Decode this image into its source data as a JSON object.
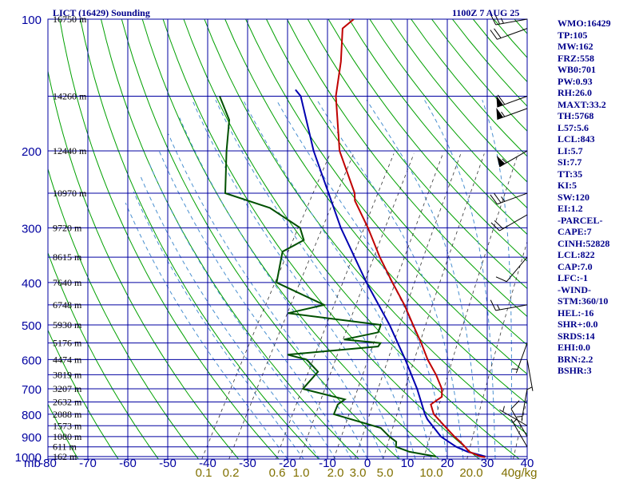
{
  "header": {
    "station": "LICT (16429) Sounding",
    "time": "1100Z  7 AUG 25"
  },
  "stats": [
    "WMO:16429",
    "TP:105",
    "MW:162",
    "FRZ:558",
    "WB0:701",
    "PW:0.93",
    "RH:26.0",
    "MAXT:33.2",
    "TH:5768",
    "L57:5.6",
    "LCL:843",
    "LI:5.7",
    "SI:7.7",
    "TT:35",
    "KI:5",
    "SW:120",
    "EI:1.2",
    "-PARCEL-",
    "CAPE:7",
    "CINH:52828",
    "LCL:822",
    "CAP:7.0",
    "LFC:-1",
    "-WIND-",
    "STM:360/10",
    "HEL:-16",
    "SHR+:0.0",
    "SRDS:14",
    "EHI:0.0",
    "BRN:2.2",
    "BSHR:3"
  ],
  "colors": {
    "frame": "#0000a0",
    "isotherm": "#0000a0",
    "isobar": "#0000a0",
    "dry_adiabat": "#00a000",
    "moist_adiabat": "#4a90d0",
    "mixing_ratio": "#333333",
    "temperature": "#c00000",
    "dewpoint": "#005000",
    "parcel": "#0000b0",
    "wind_barb": "#000000",
    "mixing_label": "#807000"
  },
  "chart_data": {
    "type": "skew-t",
    "ylabel": "mb",
    "pressure_levels": [
      100,
      200,
      300,
      400,
      500,
      600,
      700,
      800,
      900,
      1000
    ],
    "pressure_tick_labels": [
      "100",
      "200",
      "300",
      "400",
      "500",
      "600",
      "700",
      "800",
      "900",
      "1000"
    ],
    "height_labels": [
      {
        "p": 100,
        "text": "16750 m"
      },
      {
        "p": 150,
        "text": "14260 m"
      },
      {
        "p": 200,
        "text": "12440 m"
      },
      {
        "p": 250,
        "text": "10970 m"
      },
      {
        "p": 300,
        "text": "9720 m"
      },
      {
        "p": 350,
        "text": "8615 m"
      },
      {
        "p": 400,
        "text": "7640 m"
      },
      {
        "p": 450,
        "text": "6748 m"
      },
      {
        "p": 500,
        "text": "5930 m"
      },
      {
        "p": 550,
        "text": "5176 m"
      },
      {
        "p": 600,
        "text": "4474 m"
      },
      {
        "p": 650,
        "text": "3819 m"
      },
      {
        "p": 700,
        "text": "3207 m"
      },
      {
        "p": 750,
        "text": "2632 m"
      },
      {
        "p": 800,
        "text": "2088 m"
      },
      {
        "p": 850,
        "text": "1573 m"
      },
      {
        "p": 900,
        "text": "1080 m"
      },
      {
        "p": 950,
        "text": "611 m"
      },
      {
        "p": 1000,
        "text": "162 m"
      }
    ],
    "temperature_ticks": [
      -80,
      -70,
      -60,
      -50,
      -40,
      -30,
      -20,
      -10,
      0,
      10,
      20,
      30,
      40
    ],
    "temperature_tick_labels": [
      "-80",
      "-70",
      "-60",
      "-50",
      "-40",
      "-30",
      "-20",
      "-10",
      "0",
      "10",
      "20",
      "30",
      "40"
    ],
    "mixing_ratios": [
      0.1,
      0.2,
      0.6,
      1.0,
      2.0,
      3.0,
      5.0,
      10.0,
      20.0,
      40.0
    ],
    "mixing_ratio_labels": [
      "0.1",
      "0.2",
      "0.6",
      "1.0",
      "2.0",
      "3.0",
      "5.0",
      "10.0",
      "20.0",
      "40g/kg"
    ],
    "temperature_profile": [
      {
        "p": 1003,
        "t": 29.2
      },
      {
        "p": 1000,
        "t": 28.0
      },
      {
        "p": 975,
        "t": 24.4
      },
      {
        "p": 950,
        "t": 22.6
      },
      {
        "p": 925,
        "t": 20.6
      },
      {
        "p": 900,
        "t": 18.4
      },
      {
        "p": 850,
        "t": 14.2
      },
      {
        "p": 800,
        "t": 9.8
      },
      {
        "p": 760,
        "t": 7.6
      },
      {
        "p": 730,
        "t": 9.2
      },
      {
        "p": 700,
        "t": 8.0
      },
      {
        "p": 650,
        "t": 4.4
      },
      {
        "p": 600,
        "t": 0.0
      },
      {
        "p": 550,
        "t": -4.1
      },
      {
        "p": 500,
        "t": -8.9
      },
      {
        "p": 450,
        "t": -14.1
      },
      {
        "p": 400,
        "t": -20.5
      },
      {
        "p": 350,
        "t": -27.5
      },
      {
        "p": 300,
        "t": -34.9
      },
      {
        "p": 260,
        "t": -42.3
      },
      {
        "p": 250,
        "t": -43.5
      },
      {
        "p": 200,
        "t": -53.7
      },
      {
        "p": 150,
        "t": -62.9
      },
      {
        "p": 125,
        "t": -66.9
      },
      {
        "p": 105,
        "t": -71.5
      },
      {
        "p": 100,
        "t": -70.1
      }
    ],
    "dewpoint_profile": [
      {
        "p": 1000,
        "t": 16.8
      },
      {
        "p": 975,
        "t": 9.4
      },
      {
        "p": 950,
        "t": 5.3
      },
      {
        "p": 925,
        "t": 4.6
      },
      {
        "p": 900,
        "t": 2.1
      },
      {
        "p": 860,
        "t": -1.4
      },
      {
        "p": 800,
        "t": -15.2
      },
      {
        "p": 760,
        "t": -15.7
      },
      {
        "p": 740,
        "t": -14.7
      },
      {
        "p": 700,
        "t": -26.8
      },
      {
        "p": 640,
        "t": -25.6
      },
      {
        "p": 600,
        "t": -30.3
      },
      {
        "p": 585,
        "t": -35.8
      },
      {
        "p": 560,
        "t": -14.4
      },
      {
        "p": 550,
        "t": -14.3
      },
      {
        "p": 540,
        "t": -24.0
      },
      {
        "p": 520,
        "t": -16.5
      },
      {
        "p": 500,
        "t": -17.0
      },
      {
        "p": 470,
        "t": -42.0
      },
      {
        "p": 450,
        "t": -34.2
      },
      {
        "p": 410,
        "t": -46.3
      },
      {
        "p": 400,
        "t": -49.5
      },
      {
        "p": 340,
        "t": -52.7
      },
      {
        "p": 320,
        "t": -49.1
      },
      {
        "p": 300,
        "t": -51.9
      },
      {
        "p": 270,
        "t": -62.5
      },
      {
        "p": 250,
        "t": -75.9
      },
      {
        "p": 200,
        "t": -82.0
      },
      {
        "p": 170,
        "t": -86.0
      },
      {
        "p": 150,
        "t": -92.0
      }
    ],
    "parcel_profile": [
      {
        "p": 1000,
        "t": 29.2
      },
      {
        "p": 975,
        "t": 24.0
      },
      {
        "p": 950,
        "t": 20.4
      },
      {
        "p": 900,
        "t": 15.0
      },
      {
        "p": 822,
        "t": 9.0
      },
      {
        "p": 800,
        "t": 7.6
      },
      {
        "p": 700,
        "t": 1.8
      },
      {
        "p": 600,
        "t": -5.6
      },
      {
        "p": 500,
        "t": -14.8
      },
      {
        "p": 400,
        "t": -27.0
      },
      {
        "p": 300,
        "t": -41.7
      },
      {
        "p": 200,
        "t": -60.2
      },
      {
        "p": 150,
        "t": -71.7
      },
      {
        "p": 145,
        "t": -74.0
      }
    ],
    "wind_barbs": [
      {
        "p": 100,
        "dir": 260,
        "kt": 25
      },
      {
        "p": 105,
        "dir": 250,
        "kt": 20
      },
      {
        "p": 150,
        "dir": 250,
        "kt": 60
      },
      {
        "p": 160,
        "dir": 250,
        "kt": 55
      },
      {
        "p": 200,
        "dir": 240,
        "kt": 55
      },
      {
        "p": 250,
        "dir": 250,
        "kt": 25
      },
      {
        "p": 280,
        "dir": 240,
        "kt": 20
      },
      {
        "p": 350,
        "dir": 220,
        "kt": 10
      },
      {
        "p": 450,
        "dir": 260,
        "kt": 15
      },
      {
        "p": 550,
        "dir": 200,
        "kt": 5
      },
      {
        "p": 600,
        "dir": 170,
        "kt": 5
      },
      {
        "p": 700,
        "dir": 190,
        "kt": 5
      },
      {
        "p": 850,
        "dir": 300,
        "kt": 5
      },
      {
        "p": 900,
        "dir": 330,
        "kt": 10
      },
      {
        "p": 950,
        "dir": 330,
        "kt": 5
      }
    ],
    "plot_range": {
      "pmin": 100,
      "pmax": 1013,
      "tmin_left": -80,
      "tmax_right": 40
    }
  }
}
